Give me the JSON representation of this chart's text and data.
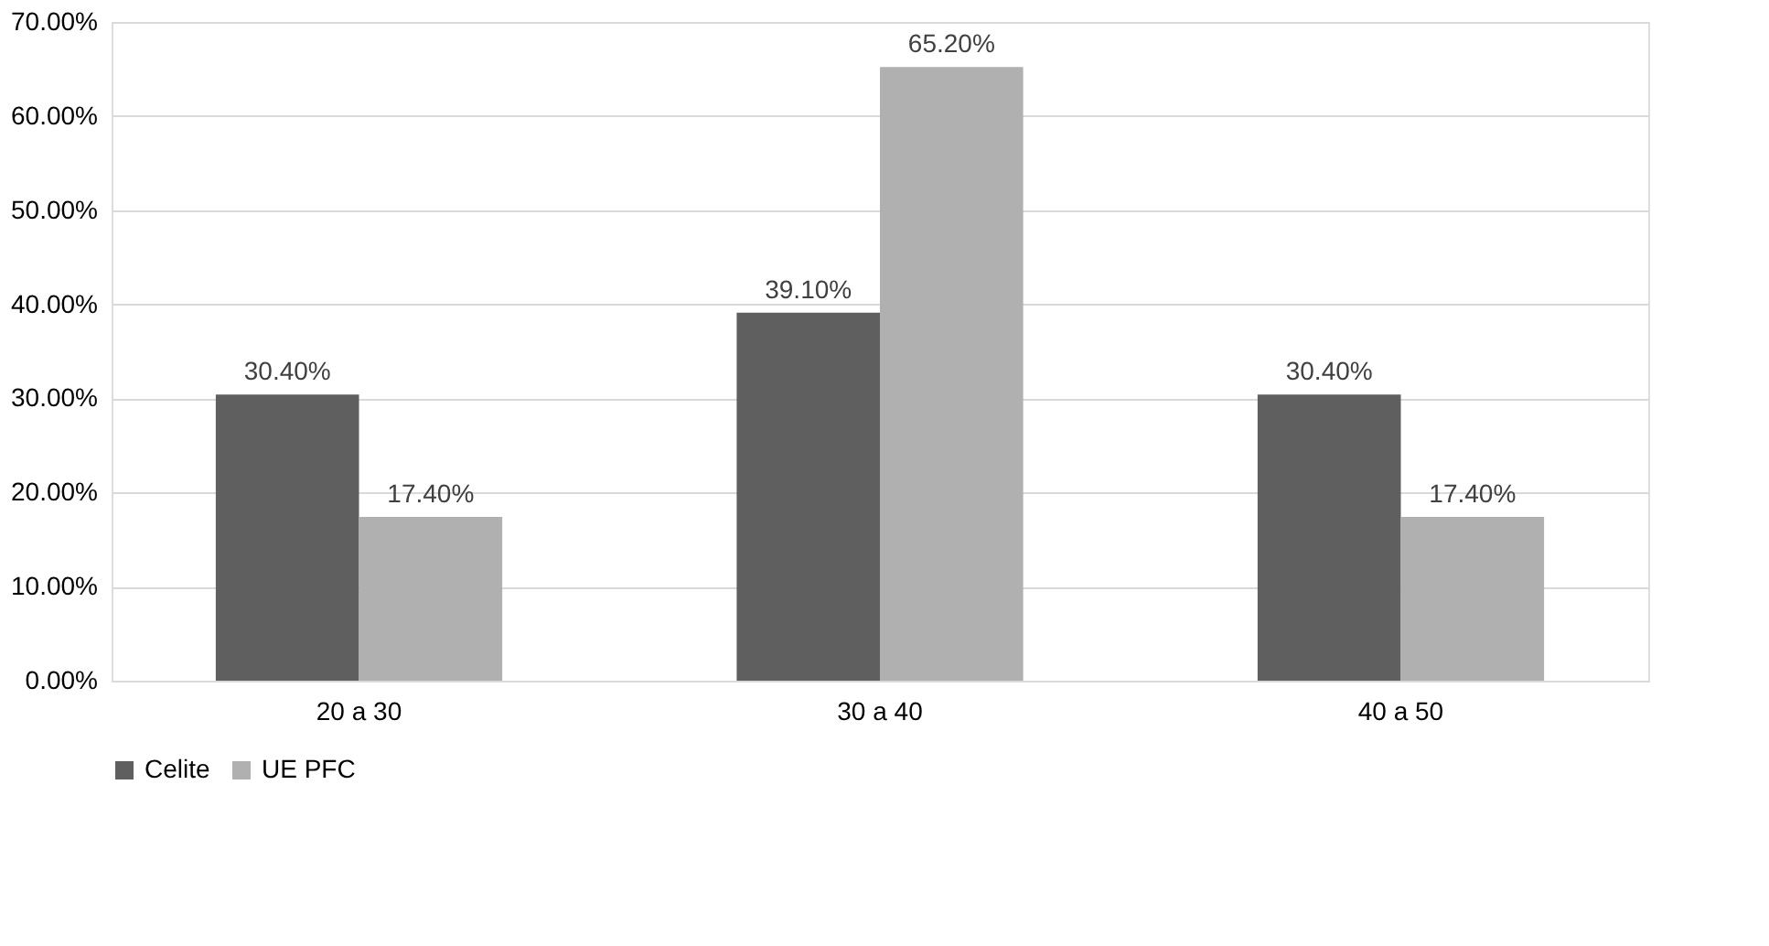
{
  "chart_data": {
    "type": "bar",
    "categories": [
      "20 a 30",
      "30 a 40",
      "40 a 50"
    ],
    "series": [
      {
        "name": "Celite",
        "color": "#5f5f5f",
        "values": [
          30.4,
          39.1,
          30.4
        ],
        "value_labels": [
          "30.40%",
          "39.10%",
          "30.40%"
        ]
      },
      {
        "name": "UE PFC",
        "color": "#b0b0b0",
        "values": [
          17.4,
          65.2,
          17.4
        ],
        "value_labels": [
          "17.40%",
          "65.20%",
          "17.40%"
        ]
      }
    ],
    "ylim": [
      0,
      70
    ],
    "yticks": [
      {
        "value": 0,
        "label": "0.00%"
      },
      {
        "value": 10,
        "label": "10.00%"
      },
      {
        "value": 20,
        "label": "20.00%"
      },
      {
        "value": 30,
        "label": "30.00%"
      },
      {
        "value": 40,
        "label": "40.00%"
      },
      {
        "value": 50,
        "label": "50.00%"
      },
      {
        "value": 60,
        "label": "60.00%"
      },
      {
        "value": 70,
        "label": "70.00%"
      }
    ],
    "grid": "y",
    "legend": "bottom"
  }
}
